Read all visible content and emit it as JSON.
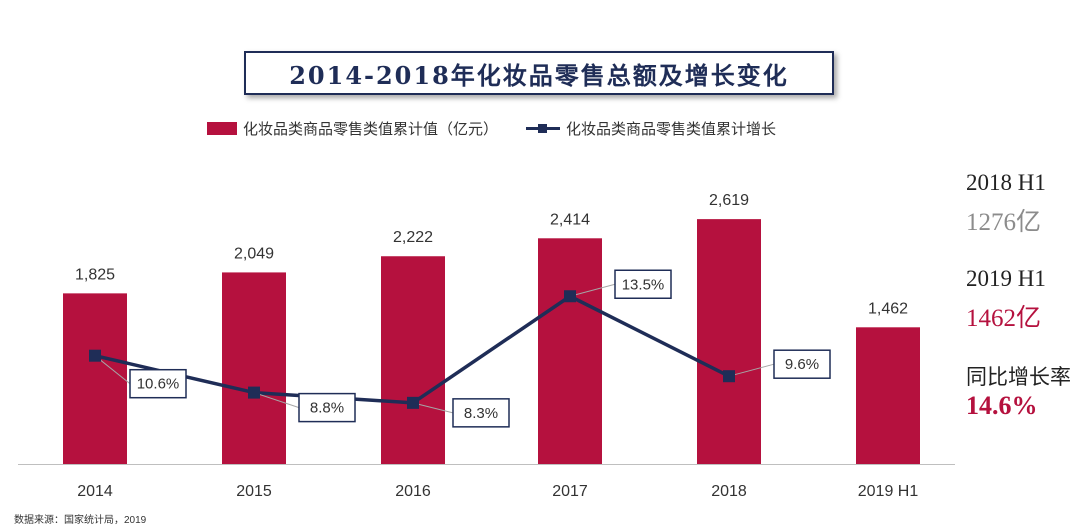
{
  "colors": {
    "bar": "#b5113e",
    "line": "#1f2d57",
    "title_border": "#1f2d57",
    "h1_2018_value": "#8c8c8c",
    "h1_2019_value": "#b5113e",
    "growth_value": "#b5113e"
  },
  "title": "2014-2018年化妆品零售总额及增长变化",
  "legend": {
    "bar_label": "化妆品类商品零售类值累计值（亿元）",
    "line_label": "化妆品类商品零售类值累计增长"
  },
  "side_panel": {
    "h1_2018_label": "2018 H1",
    "h1_2018_value": "1276亿",
    "h1_2019_label": "2019 H1",
    "h1_2019_value": "1462亿",
    "growth_label": "同比增长率",
    "growth_value": "14.6%"
  },
  "source": "数据来源：国家统计局，2019",
  "chart_data": {
    "type": "bar+line",
    "categories": [
      "2014",
      "2015",
      "2016",
      "2017",
      "2018",
      "2019 H1"
    ],
    "series": [
      {
        "name": "化妆品类商品零售类值累计值（亿元）",
        "type": "bar",
        "values": [
          1825,
          2049,
          2222,
          2414,
          2619,
          1462
        ],
        "labels": [
          "1,825",
          "2,049",
          "2,222",
          "2,414",
          "2,619",
          "1,462"
        ]
      },
      {
        "name": "化妆品类商品零售类值累计增长",
        "type": "line",
        "values": [
          10.6,
          8.8,
          8.3,
          13.5,
          9.6,
          null
        ],
        "labels": [
          "10.6%",
          "8.8%",
          "8.3%",
          "13.5%",
          "9.6%",
          null
        ]
      }
    ],
    "bar_axis_range": [
      0,
      3200
    ],
    "line_axis_range": [
      3.5,
      17.0
    ],
    "grid": false,
    "legend_position": "top"
  }
}
